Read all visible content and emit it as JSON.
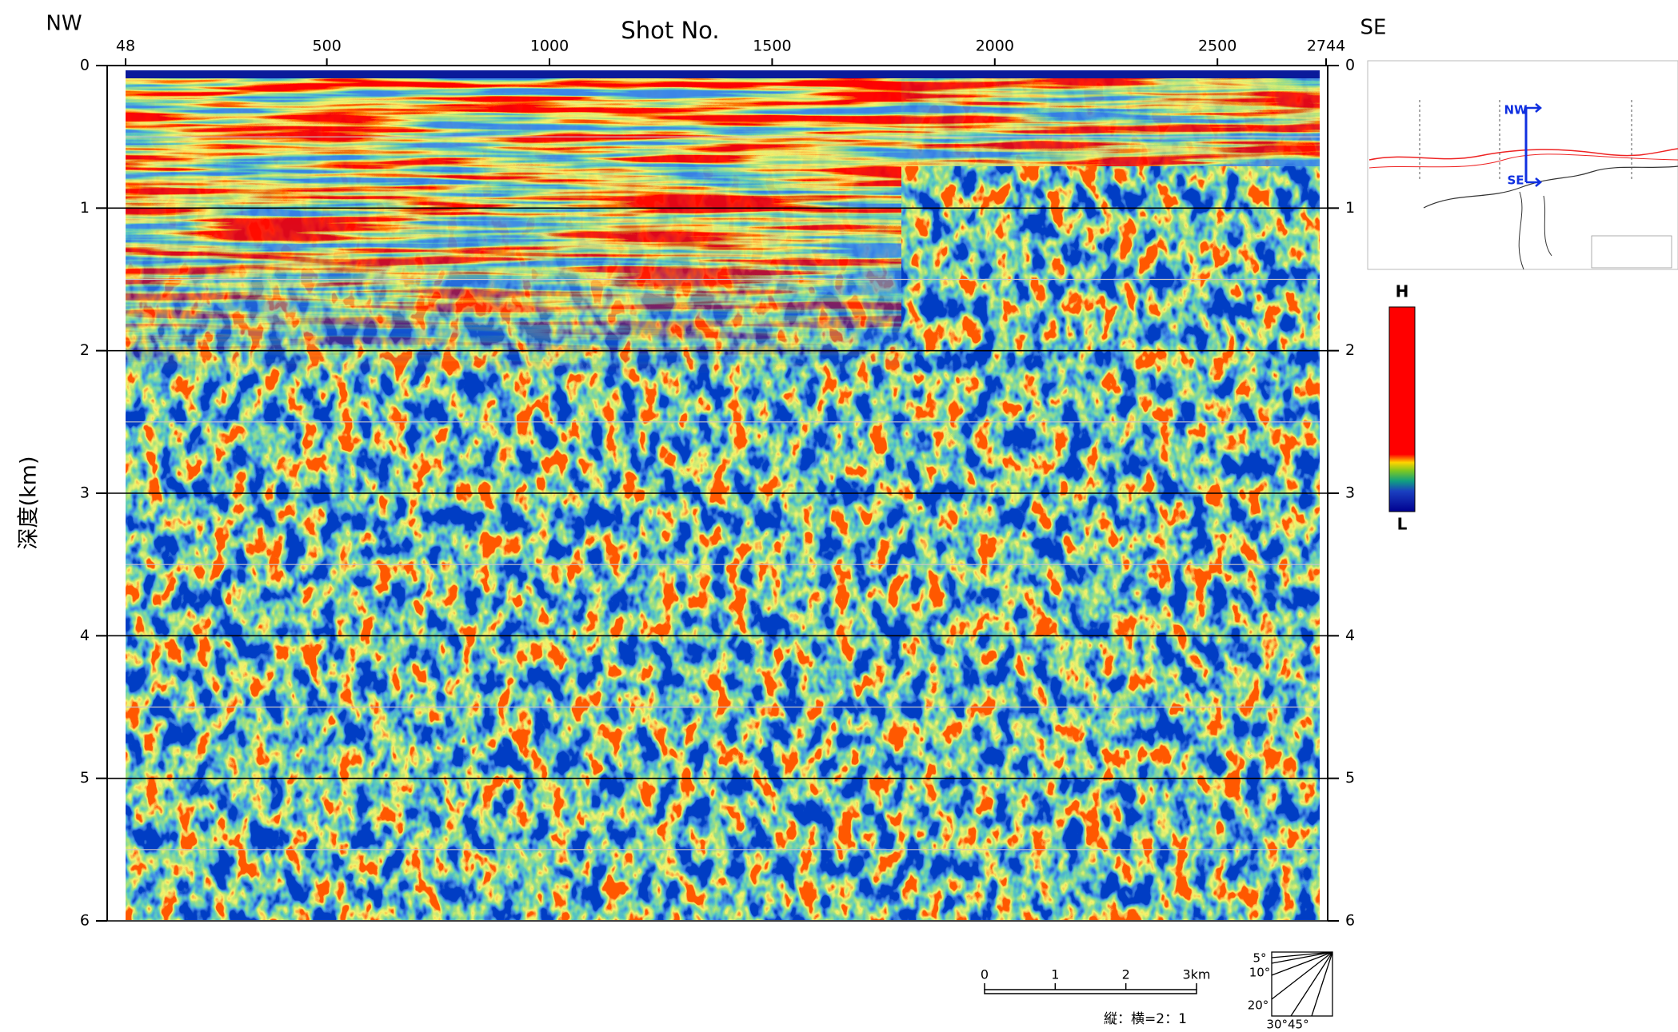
{
  "labels": {
    "left_direction": "NW",
    "right_direction": "SE",
    "x_axis_title": "Shot No.",
    "y_axis_title": "深度(km)"
  },
  "x_axis": {
    "range": [
      48,
      2744
    ],
    "ticks": [
      48,
      500,
      1000,
      1500,
      2000,
      2500,
      2744
    ]
  },
  "y_axis": {
    "range": [
      0,
      6
    ],
    "ticks": [
      0,
      1,
      2,
      3,
      4,
      5,
      6
    ],
    "minor_gridlines": [
      0.5,
      1.5,
      2.5,
      3.5,
      4.5,
      5.5
    ]
  },
  "inset_map": {
    "labels": [
      "NW",
      "SE"
    ]
  },
  "amplitude_colorbar": {
    "high_label": "H",
    "low_label": "L"
  },
  "scale_bar": {
    "ticks": [
      0,
      1,
      2,
      {
        "value": 3,
        "label": "3km"
      }
    ],
    "ratio_label": "縦：横=2：1"
  },
  "dip_angles": {
    "labels": [
      "5°",
      "10°",
      "20°",
      "30°45°"
    ]
  }
}
